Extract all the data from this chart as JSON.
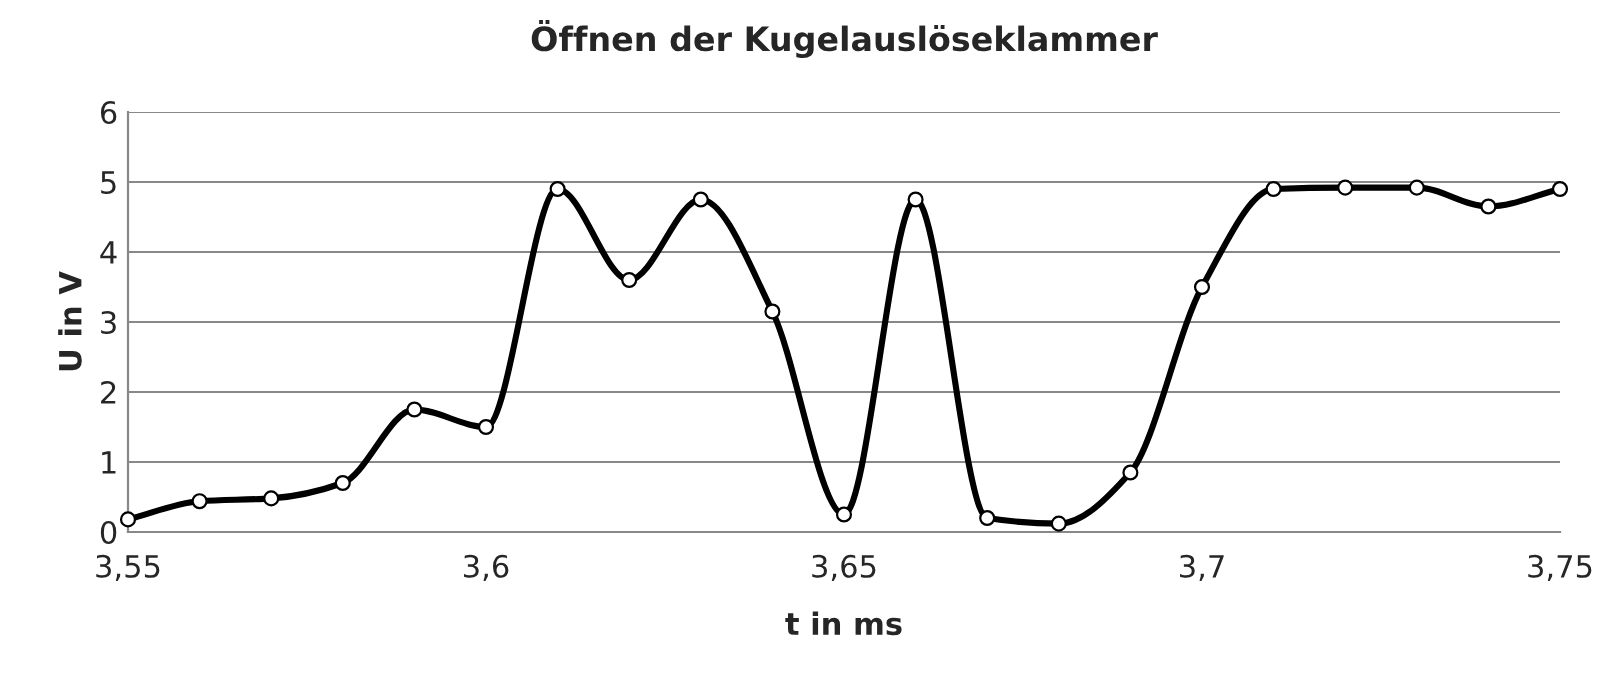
{
  "chart_data": {
    "type": "line",
    "title": "Öffnen der Kugelauslöseklammer",
    "xlabel": "t in ms",
    "ylabel": "U in V",
    "x": [
      3.55,
      3.56,
      3.57,
      3.58,
      3.59,
      3.6,
      3.61,
      3.62,
      3.63,
      3.64,
      3.65,
      3.66,
      3.67,
      3.68,
      3.69,
      3.7,
      3.71,
      3.72,
      3.73,
      3.74,
      3.75
    ],
    "series": [
      {
        "color": "#000000",
        "values": [
          0.18,
          0.44,
          0.48,
          0.7,
          1.75,
          1.5,
          4.9,
          3.6,
          4.75,
          3.15,
          0.25,
          4.75,
          0.2,
          0.12,
          0.85,
          3.5,
          4.9,
          4.92,
          4.92,
          4.65,
          4.9
        ]
      }
    ],
    "xlim": [
      3.55,
      3.75
    ],
    "xticks": [
      {
        "value": 3.55,
        "label": "3,55"
      },
      {
        "value": 3.6,
        "label": "3,6"
      },
      {
        "value": 3.65,
        "label": "3,65"
      },
      {
        "value": 3.7,
        "label": "3,7"
      },
      {
        "value": 3.75,
        "label": "3,75"
      }
    ],
    "ylim": [
      0,
      6
    ],
    "yticks": [
      0,
      1,
      2,
      3,
      4,
      5,
      6
    ],
    "grid": "y",
    "marker": "circle",
    "line_style": "solid",
    "legend": false
  }
}
